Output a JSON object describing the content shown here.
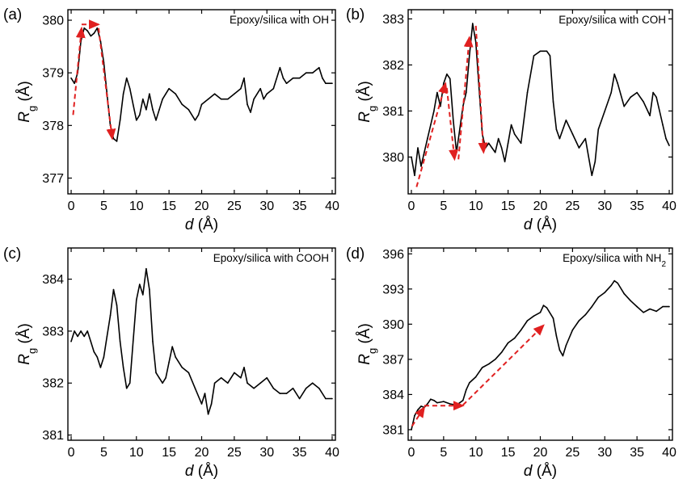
{
  "figure": {
    "panels": [
      {
        "letter": "(a)",
        "legend": "Epoxy/silica with OH",
        "xlabel": "d (Å)",
        "ylabel": "Rg (Å)",
        "xticks": [
          "0",
          "5",
          "10",
          "15",
          "20",
          "25",
          "30",
          "35",
          "40"
        ],
        "yticks": [
          "377",
          "378",
          "379",
          "380"
        ]
      },
      {
        "letter": "(b)",
        "legend": "Epoxy/silica with COH",
        "xlabel": "d (Å)",
        "ylabel": "Rg (Å)",
        "xticks": [
          "0",
          "5",
          "10",
          "15",
          "20",
          "25",
          "30",
          "35",
          "40"
        ],
        "yticks": [
          "380",
          "381",
          "382",
          "383"
        ]
      },
      {
        "letter": "(c)",
        "legend": "Epoxy/silica with COOH",
        "xlabel": "d (Å)",
        "ylabel": "Rg (Å)",
        "xticks": [
          "0",
          "5",
          "10",
          "15",
          "20",
          "25",
          "30",
          "35",
          "40"
        ],
        "yticks": [
          "381",
          "382",
          "383",
          "384"
        ]
      },
      {
        "letter": "(d)",
        "legend": "Epoxy/silica with NH2",
        "xlabel": "d (Å)",
        "ylabel": "Rg (Å)",
        "xticks": [
          "0",
          "5",
          "10",
          "15",
          "20",
          "25",
          "30",
          "35",
          "40"
        ],
        "yticks": [
          "381",
          "384",
          "387",
          "390",
          "393",
          "396"
        ]
      }
    ]
  },
  "chart_data": [
    {
      "type": "line",
      "title": "Epoxy/silica with OH",
      "xlabel": "d (Å)",
      "ylabel": "Rg (Å)",
      "xlim": [
        -0.5,
        40.5
      ],
      "ylim": [
        376.7,
        380.2
      ],
      "line_color": "#000000",
      "points": [
        [
          0,
          378.9
        ],
        [
          0.5,
          378.8
        ],
        [
          1,
          379.0
        ],
        [
          1.5,
          379.6
        ],
        [
          2,
          379.85
        ],
        [
          2.5,
          379.8
        ],
        [
          3,
          379.7
        ],
        [
          3.5,
          379.75
        ],
        [
          4,
          379.85
        ],
        [
          4.5,
          379.6
        ],
        [
          5,
          379.2
        ],
        [
          5.5,
          378.6
        ],
        [
          6,
          378.0
        ],
        [
          6.5,
          377.75
        ],
        [
          7,
          377.7
        ],
        [
          7.5,
          378.1
        ],
        [
          8,
          378.6
        ],
        [
          8.5,
          378.9
        ],
        [
          9,
          378.7
        ],
        [
          9.5,
          378.4
        ],
        [
          10,
          378.1
        ],
        [
          10.5,
          378.2
        ],
        [
          11,
          378.5
        ],
        [
          11.5,
          378.3
        ],
        [
          12,
          378.6
        ],
        [
          12.5,
          378.3
        ],
        [
          13,
          378.1
        ],
        [
          13.5,
          378.3
        ],
        [
          14,
          378.5
        ],
        [
          14.5,
          378.6
        ],
        [
          15,
          378.7
        ],
        [
          16,
          378.6
        ],
        [
          17,
          378.4
        ],
        [
          18,
          378.3
        ],
        [
          19,
          378.1
        ],
        [
          19.5,
          378.2
        ],
        [
          20,
          378.4
        ],
        [
          21,
          378.5
        ],
        [
          22,
          378.6
        ],
        [
          23,
          378.5
        ],
        [
          24,
          378.5
        ],
        [
          25,
          378.6
        ],
        [
          26,
          378.7
        ],
        [
          26.5,
          378.9
        ],
        [
          27,
          378.4
        ],
        [
          27.5,
          378.25
        ],
        [
          28,
          378.5
        ],
        [
          29,
          378.7
        ],
        [
          29.5,
          378.5
        ],
        [
          30,
          378.6
        ],
        [
          31,
          378.7
        ],
        [
          32,
          379.1
        ],
        [
          32.5,
          378.9
        ],
        [
          33,
          378.8
        ],
        [
          34,
          378.9
        ],
        [
          35,
          378.9
        ],
        [
          36,
          379.0
        ],
        [
          37,
          379.0
        ],
        [
          38,
          379.1
        ],
        [
          38.5,
          378.9
        ],
        [
          39,
          378.8
        ],
        [
          40,
          378.8
        ]
      ],
      "annotations": [
        {
          "type": "arrow",
          "color": "#e02020",
          "from": [
            0.3,
            378.2
          ],
          "to": [
            1.6,
            379.85
          ]
        },
        {
          "type": "arrow",
          "color": "#e02020",
          "from": [
            1.6,
            379.92
          ],
          "to": [
            4.2,
            379.92
          ]
        },
        {
          "type": "arrow",
          "color": "#e02020",
          "from": [
            4.2,
            379.85
          ],
          "to": [
            6.3,
            377.75
          ]
        }
      ]
    },
    {
      "type": "line",
      "title": "Epoxy/silica with COH",
      "xlabel": "d (Å)",
      "ylabel": "Rg (Å)",
      "xlim": [
        -0.5,
        40.5
      ],
      "ylim": [
        379.2,
        383.2
      ],
      "line_color": "#000000",
      "points": [
        [
          0,
          380.0
        ],
        [
          0.5,
          379.6
        ],
        [
          1,
          380.2
        ],
        [
          1.5,
          379.8
        ],
        [
          2,
          380.1
        ],
        [
          2.5,
          380.4
        ],
        [
          3,
          380.7
        ],
        [
          3.5,
          381.0
        ],
        [
          4,
          381.4
        ],
        [
          4.5,
          381.1
        ],
        [
          5,
          381.6
        ],
        [
          5.5,
          381.8
        ],
        [
          6,
          381.7
        ],
        [
          6.5,
          380.8
        ],
        [
          7,
          380.1
        ],
        [
          7.5,
          380.6
        ],
        [
          8,
          381.1
        ],
        [
          8.5,
          381.4
        ],
        [
          9,
          382.2
        ],
        [
          9.5,
          382.9
        ],
        [
          10,
          382.5
        ],
        [
          10.5,
          381.5
        ],
        [
          11,
          380.5
        ],
        [
          11.5,
          380.2
        ],
        [
          12,
          380.3
        ],
        [
          12.5,
          380.2
        ],
        [
          13,
          380.1
        ],
        [
          13.5,
          380.4
        ],
        [
          14,
          380.2
        ],
        [
          14.5,
          379.9
        ],
        [
          15,
          380.3
        ],
        [
          15.5,
          380.7
        ],
        [
          16,
          380.5
        ],
        [
          17,
          380.3
        ],
        [
          18,
          381.4
        ],
        [
          19,
          382.2
        ],
        [
          20,
          382.3
        ],
        [
          21,
          382.3
        ],
        [
          21.5,
          382.2
        ],
        [
          22,
          381.2
        ],
        [
          22.5,
          380.6
        ],
        [
          23,
          380.4
        ],
        [
          24,
          380.8
        ],
        [
          25,
          380.5
        ],
        [
          26,
          380.2
        ],
        [
          27,
          380.4
        ],
        [
          28,
          379.6
        ],
        [
          28.5,
          379.9
        ],
        [
          29,
          380.6
        ],
        [
          30,
          381.0
        ],
        [
          31,
          381.4
        ],
        [
          31.5,
          381.8
        ],
        [
          32,
          381.6
        ],
        [
          33,
          381.1
        ],
        [
          34,
          381.3
        ],
        [
          35,
          381.4
        ],
        [
          36,
          381.2
        ],
        [
          37,
          380.9
        ],
        [
          37.5,
          381.4
        ],
        [
          38,
          381.3
        ],
        [
          39,
          380.7
        ],
        [
          39.5,
          380.4
        ],
        [
          40,
          380.25
        ]
      ],
      "annotations": [
        {
          "type": "arrow",
          "color": "#e02020",
          "from": [
            0.8,
            379.35
          ],
          "to": [
            5.3,
            381.6
          ]
        },
        {
          "type": "arrow",
          "color": "#e02020",
          "from": [
            5.5,
            381.5
          ],
          "to": [
            6.7,
            379.95
          ]
        },
        {
          "type": "arrow",
          "color": "#e02020",
          "from": [
            7.3,
            379.95
          ],
          "to": [
            9.0,
            382.6
          ]
        },
        {
          "type": "arrow",
          "color": "#e02020",
          "from": [
            10.0,
            382.85
          ],
          "to": [
            11.2,
            380.1
          ]
        }
      ]
    },
    {
      "type": "line",
      "title": "Epoxy/silica with COOH",
      "xlabel": "d (Å)",
      "ylabel": "Rg (Å)",
      "xlim": [
        -0.5,
        40.5
      ],
      "ylim": [
        380.9,
        384.6
      ],
      "line_color": "#000000",
      "points": [
        [
          0,
          382.8
        ],
        [
          0.5,
          383.0
        ],
        [
          1,
          382.9
        ],
        [
          1.5,
          383.0
        ],
        [
          2,
          382.9
        ],
        [
          2.5,
          383.0
        ],
        [
          3,
          382.8
        ],
        [
          3.5,
          382.6
        ],
        [
          4,
          382.5
        ],
        [
          4.5,
          382.3
        ],
        [
          5,
          382.5
        ],
        [
          5.5,
          382.9
        ],
        [
          6,
          383.3
        ],
        [
          6.5,
          383.8
        ],
        [
          7,
          383.5
        ],
        [
          7.5,
          382.8
        ],
        [
          8,
          382.3
        ],
        [
          8.5,
          381.9
        ],
        [
          9,
          382.0
        ],
        [
          9.5,
          382.8
        ],
        [
          10,
          383.6
        ],
        [
          10.5,
          383.9
        ],
        [
          11,
          383.7
        ],
        [
          11.5,
          384.2
        ],
        [
          12,
          383.8
        ],
        [
          12.5,
          382.8
        ],
        [
          13,
          382.2
        ],
        [
          13.5,
          382.1
        ],
        [
          14,
          382.0
        ],
        [
          14.5,
          382.1
        ],
        [
          15,
          382.4
        ],
        [
          15.5,
          382.7
        ],
        [
          16,
          382.5
        ],
        [
          17,
          382.3
        ],
        [
          18,
          382.2
        ],
        [
          19,
          381.9
        ],
        [
          20,
          381.6
        ],
        [
          20.5,
          381.8
        ],
        [
          21,
          381.4
        ],
        [
          21.5,
          381.6
        ],
        [
          22,
          382.0
        ],
        [
          23,
          382.1
        ],
        [
          24,
          382.0
        ],
        [
          25,
          382.2
        ],
        [
          26,
          382.1
        ],
        [
          26.5,
          382.3
        ],
        [
          27,
          382.0
        ],
        [
          28,
          381.9
        ],
        [
          29,
          382.0
        ],
        [
          30,
          382.1
        ],
        [
          31,
          381.9
        ],
        [
          32,
          381.8
        ],
        [
          33,
          381.8
        ],
        [
          34,
          381.9
        ],
        [
          35,
          381.7
        ],
        [
          36,
          381.9
        ],
        [
          37,
          382.0
        ],
        [
          38,
          381.9
        ],
        [
          39,
          381.7
        ],
        [
          40,
          381.7
        ]
      ],
      "annotations": []
    },
    {
      "type": "line",
      "title": "Epoxy/silica with NH2",
      "xlabel": "d (Å)",
      "ylabel": "Rg (Å)",
      "xlim": [
        -0.5,
        40.5
      ],
      "ylim": [
        380.1,
        396.5
      ],
      "line_color": "#000000",
      "points": [
        [
          0,
          381.0
        ],
        [
          0.5,
          382.2
        ],
        [
          1,
          382.7
        ],
        [
          1.5,
          383.0
        ],
        [
          2,
          382.9
        ],
        [
          2.5,
          383.2
        ],
        [
          3,
          383.6
        ],
        [
          3.5,
          383.5
        ],
        [
          4,
          383.3
        ],
        [
          5,
          383.4
        ],
        [
          6,
          383.2
        ],
        [
          7,
          383.1
        ],
        [
          7.5,
          383.3
        ],
        [
          8,
          383.5
        ],
        [
          8.5,
          384.4
        ],
        [
          9,
          385.0
        ],
        [
          10,
          385.5
        ],
        [
          11,
          386.3
        ],
        [
          12,
          386.6
        ],
        [
          13,
          387.0
        ],
        [
          14,
          387.6
        ],
        [
          15,
          388.4
        ],
        [
          16,
          388.8
        ],
        [
          17,
          389.5
        ],
        [
          18,
          390.3
        ],
        [
          19,
          390.7
        ],
        [
          20,
          391.0
        ],
        [
          20.5,
          391.6
        ],
        [
          21,
          391.4
        ],
        [
          22,
          390.5
        ],
        [
          22.5,
          389.0
        ],
        [
          23,
          387.8
        ],
        [
          23.5,
          387.3
        ],
        [
          24,
          388.2
        ],
        [
          25,
          389.5
        ],
        [
          26,
          390.3
        ],
        [
          27,
          390.8
        ],
        [
          28,
          391.5
        ],
        [
          29,
          392.3
        ],
        [
          30,
          392.7
        ],
        [
          31,
          393.3
        ],
        [
          31.5,
          393.7
        ],
        [
          32,
          393.5
        ],
        [
          33,
          392.6
        ],
        [
          34,
          392.0
        ],
        [
          35,
          391.5
        ],
        [
          36,
          391.0
        ],
        [
          37,
          391.3
        ],
        [
          38,
          391.1
        ],
        [
          39,
          391.5
        ],
        [
          40,
          391.5
        ]
      ],
      "annotations": [
        {
          "type": "arrow",
          "color": "#e02020",
          "from": [
            0.1,
            381.3
          ],
          "to": [
            2.0,
            382.9
          ]
        },
        {
          "type": "arrow",
          "color": "#e02020",
          "from": [
            2.0,
            383.05
          ],
          "to": [
            8.0,
            383.05
          ]
        },
        {
          "type": "arrow",
          "color": "#e02020",
          "from": [
            8.0,
            383.1
          ],
          "to": [
            20.5,
            389.9
          ]
        }
      ]
    }
  ]
}
